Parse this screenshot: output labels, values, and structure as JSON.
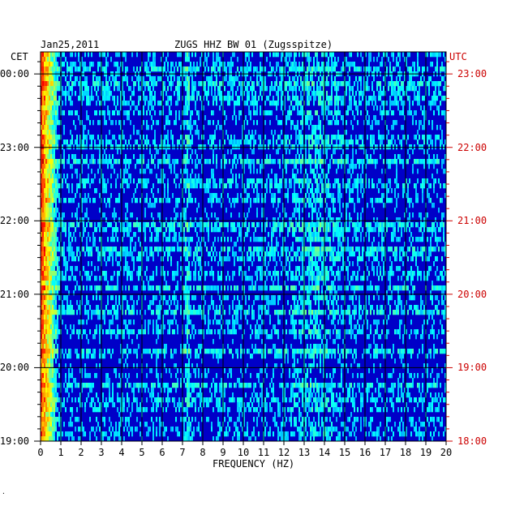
{
  "chart_data": {
    "type": "heatmap",
    "date": "Jan25,2011",
    "title": "ZUGS HHZ BW 01 (Zugsspitze)",
    "left_axis_label": "CET",
    "right_axis_label": "UTC",
    "xlabel": "FREQUENCY (HZ)",
    "x_ticks": [
      "0",
      "1",
      "2",
      "3",
      "4",
      "5",
      "6",
      "7",
      "8",
      "9",
      "10",
      "11",
      "12",
      "13",
      "14",
      "15",
      "16",
      "17",
      "18",
      "19",
      "20"
    ],
    "xlim": [
      0,
      20
    ],
    "left_time_ticks": [
      "19:00",
      "20:00",
      "21:00",
      "22:00",
      "23:00",
      "00:00"
    ],
    "right_time_ticks": [
      "18:00",
      "19:00",
      "20:00",
      "21:00",
      "22:00",
      "23:00"
    ],
    "ylim_hours_cet": [
      19.0,
      24.3
    ],
    "grid": true,
    "notes": "Spectrogram: strongest energy below 1 Hz (yellow/red), elevated bands near 7.2 Hz and 12.5-14.5 Hz; deep blue background.",
    "colors": {
      "background": "#0000c8",
      "grid": "#000000",
      "left_ticks": "#000000",
      "right_ticks": "#cc0000"
    }
  },
  "footnote": "."
}
